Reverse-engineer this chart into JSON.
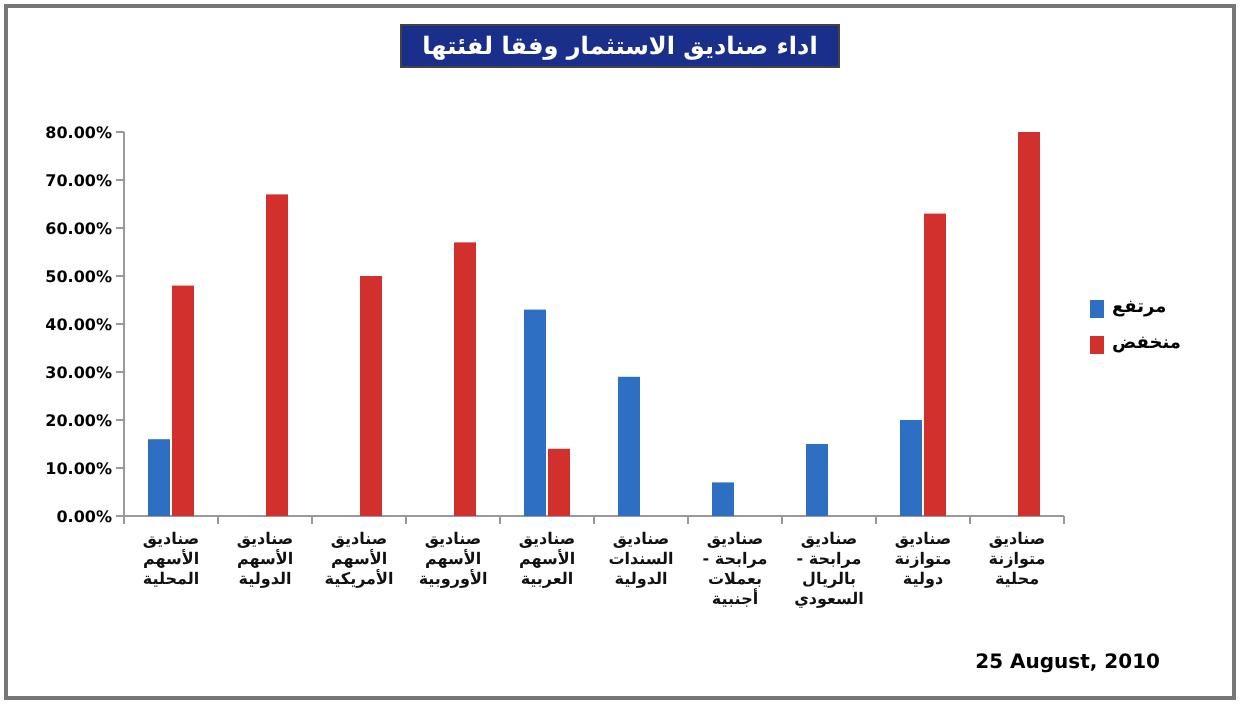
{
  "chart_data": {
    "type": "bar",
    "title": "اداء صناديق الاستثمار وفقا لفئتها",
    "categories": [
      "صناديق الأسهم المحلية",
      "صناديق الأسهم الدولية",
      "صناديق الأسهم الأمريكية",
      "صناديق الأسهم الأوروبية",
      "صناديق الأسهم العربية",
      "صناديق السندات الدولية",
      "صناديق مرابحة - بعملات أجنبية",
      "صناديق مرابحة - بالريال السعودي",
      "صناديق متوازنة دولية",
      "صناديق متوازنة محلية"
    ],
    "series": [
      {
        "name": "مرتفع",
        "color": "#2e6fc4",
        "values": [
          16,
          0,
          0,
          0,
          43,
          29,
          7,
          15,
          20,
          0
        ]
      },
      {
        "name": "منخفض",
        "color": "#d2302c",
        "values": [
          48,
          67,
          50,
          57,
          14,
          0,
          0,
          0,
          63,
          80
        ]
      }
    ],
    "ylim": [
      0,
      80
    ],
    "yticks": [
      {
        "value": 0,
        "label": "0.00%"
      },
      {
        "value": 10,
        "label": "10.00%"
      },
      {
        "value": 20,
        "label": "20.00%"
      },
      {
        "value": 30,
        "label": "30.00%"
      },
      {
        "value": 40,
        "label": "40.00%"
      },
      {
        "value": 50,
        "label": "50.00%"
      },
      {
        "value": 60,
        "label": "60.00%"
      },
      {
        "value": 70,
        "label": "70.00%"
      },
      {
        "value": 80,
        "label": "80.00%"
      }
    ],
    "legend": "right",
    "annotations": [
      "25 August, 2010"
    ]
  }
}
